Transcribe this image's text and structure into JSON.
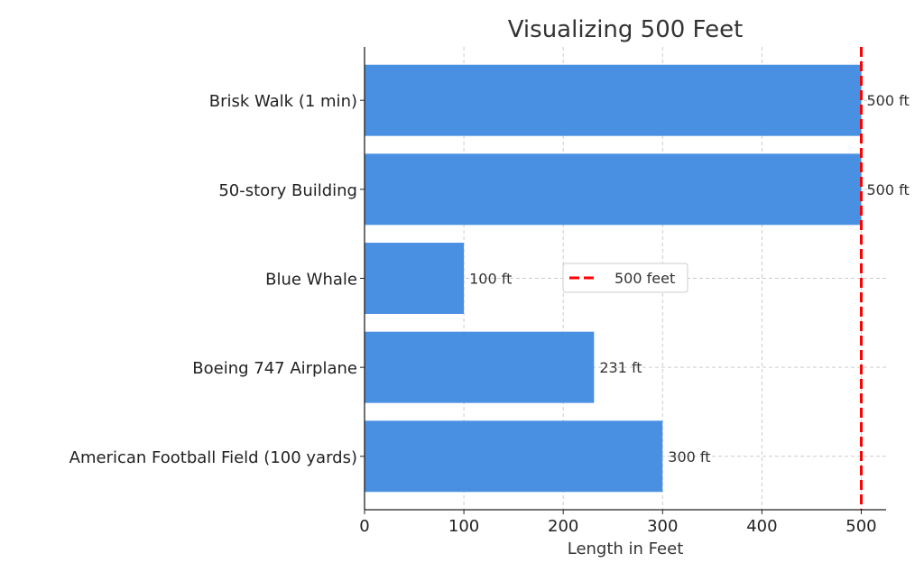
{
  "chart_data": {
    "type": "bar",
    "orientation": "horizontal",
    "title": "Visualizing 500 Feet",
    "xlabel": "Length in Feet",
    "ylabel": "",
    "categories": [
      "American Football Field (100 yards)",
      "Boeing 747 Airplane",
      "Blue Whale",
      "50-story Building",
      "Brisk Walk (1 min)"
    ],
    "values": [
      300,
      231,
      100,
      500,
      500
    ],
    "data_labels": [
      "300 ft",
      "231 ft",
      "100 ft",
      "500 ft",
      "500 ft"
    ],
    "xlim": [
      0,
      525
    ],
    "xticks": [
      0,
      100,
      200,
      300,
      400,
      500
    ],
    "xtick_labels": [
      "0",
      "100",
      "200",
      "300",
      "400",
      "500"
    ],
    "reference_line": {
      "x": 500,
      "label": "500 feet",
      "style": "dashed",
      "color": "#ff0000"
    },
    "legend": {
      "placement": "center",
      "entries": [
        "500 feet"
      ]
    },
    "grid": true,
    "bar_color": "#4a90e2"
  }
}
